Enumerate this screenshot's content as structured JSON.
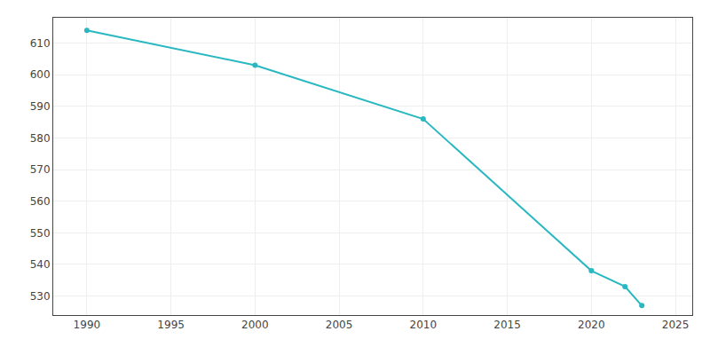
{
  "chart_data": {
    "type": "line",
    "x": [
      1990,
      2000,
      2010,
      2020,
      2022,
      2023
    ],
    "values": [
      614,
      603,
      586,
      538,
      533,
      527
    ],
    "color": "#29B8C2",
    "marker": "circle",
    "xlim": [
      1988,
      2026
    ],
    "ylim": [
      524,
      618
    ],
    "xticks": [
      1990,
      1995,
      2000,
      2005,
      2010,
      2015,
      2020,
      2025
    ],
    "yticks": [
      530,
      540,
      550,
      560,
      570,
      580,
      590,
      600,
      610
    ],
    "grid": true
  }
}
